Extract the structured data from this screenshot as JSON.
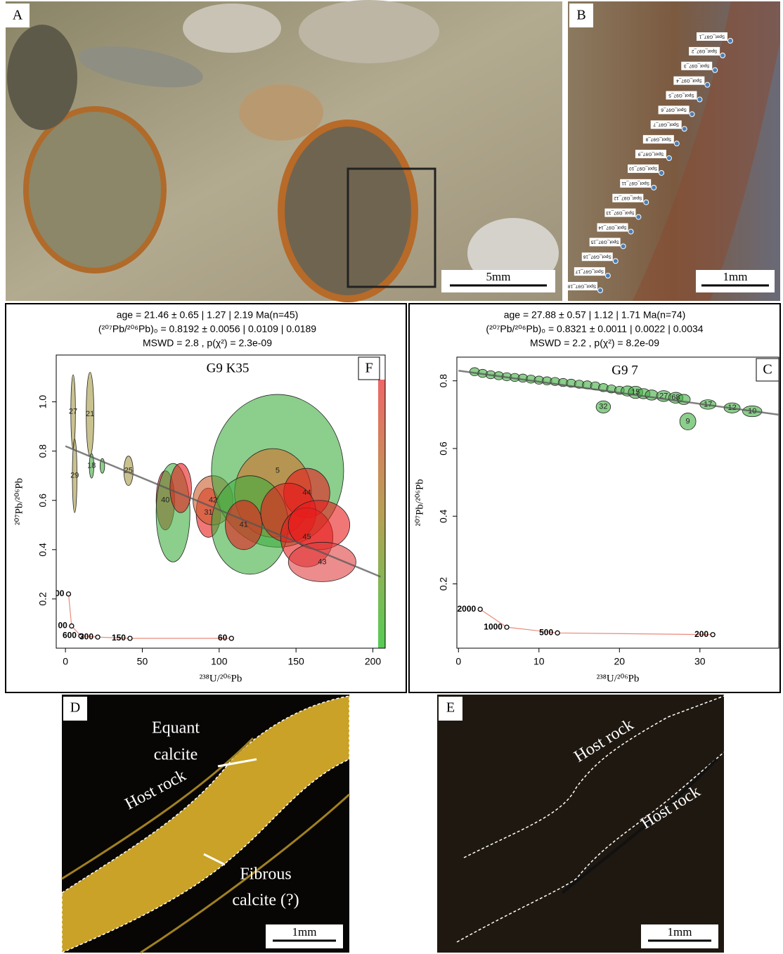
{
  "panels": {
    "labels": [
      "A",
      "B",
      "F",
      "C",
      "D",
      "E"
    ],
    "scale_bars": [
      "5mm",
      "1mm",
      "1mm",
      "1mm"
    ],
    "spots": [
      "Spot_G97_1",
      "Spot_G97_2",
      "Spot_G97_3",
      "Spot_G97_4",
      "Spot_G97_5",
      "Spot_G97_6",
      "Spot_G97_7",
      "Spot_G97_8",
      "Spot_G97_9",
      "Spot_G97_10",
      "Spot_G97_11",
      "Spot_G97_12",
      "Spot_G97_13",
      "Spot_G97_14",
      "Spot_G97_15",
      "Spot_G97_16",
      "Spot_G97_17",
      "Spot_G97_18"
    ],
    "annotations_d": [
      "Equant",
      "calcite",
      "Host rock",
      "Fibrous",
      "calcite (?)"
    ],
    "annotations_e": [
      "Host rock",
      "Host rock"
    ]
  },
  "chart_data": [
    {
      "type": "scatter",
      "title": "G9 K35",
      "subtitle": [
        "age = 21.46 ± 0.65 | 1.27 | 2.19 Ma(n=45)",
        "(²⁰⁷Pb/²⁰⁶Pb)₀ = 0.8192 ± 0.0056 | 0.0109 | 0.0189",
        "MSWD = 2.8 ,  p(χ²) = 2.3e-09"
      ],
      "xlabel": "²³⁸U/²⁰⁶Pb",
      "ylabel": "²⁰⁷Pb/²⁰⁶Pb",
      "xlim": [
        -6,
        208
      ],
      "ylim": [
        0,
        1.19
      ],
      "xticks": [
        0,
        50,
        100,
        150,
        200
      ],
      "yticks": [
        0.2,
        0.4,
        0.6,
        0.8,
        {
          "value": 1,
          "label": "1.0"
        }
      ],
      "series": [
        {
          "x": [
            5,
            16,
            6,
            17,
            24,
            41,
            65,
            70,
            75,
            93,
            96,
            138,
            135,
            120,
            116,
            157,
            145,
            157,
            165,
            167
          ],
          "values": [
            0.96,
            0.95,
            0.7,
            0.74,
            0.74,
            0.72,
            0.6,
            0.55,
            0.65,
            0.55,
            0.6,
            0.72,
            0.63,
            0.5,
            0.5,
            0.63,
            0.55,
            0.45,
            0.5,
            0.35
          ],
          "x_err": [
            1.5,
            2.5,
            1.5,
            1.5,
            1.5,
            3,
            6,
            11,
            7,
            8,
            13,
            43,
            25,
            25,
            12,
            15,
            18,
            17,
            20,
            22
          ],
          "y_err": [
            0.15,
            0.17,
            0.15,
            0.05,
            0.03,
            0.06,
            0.12,
            0.2,
            0.1,
            0.1,
            0.1,
            0.31,
            0.18,
            0.2,
            0.1,
            0.1,
            0.12,
            0.12,
            0.1,
            0.08
          ],
          "colors": [
            "#a59a45",
            "#a59a45",
            "#a59a45",
            "#3fae3f",
            "#3fae3f",
            "#a59a45",
            "#e81c1c",
            "#3fae3f",
            "#e81c1c",
            "#e81c1c",
            "#cc5a2a",
            "#3fae3f",
            "#d0702a",
            "#3fae3f",
            "#e81c1c",
            "#e81c1c",
            "#e81c1c",
            "#e81c1c",
            "#e81c1c",
            "#e04040"
          ],
          "labels": [
            "27",
            "21",
            "29",
            "18",
            null,
            "25",
            "40",
            null,
            null,
            "31",
            "42",
            "5",
            null,
            null,
            "41",
            "44",
            null,
            "45",
            null,
            "43"
          ]
        }
      ],
      "regression": {
        "x": [
          0,
          205
        ],
        "values": [
          0.82,
          0.29
        ]
      },
      "concordia": {
        "labels": [
          "00",
          "00",
          "600",
          "300",
          "150",
          "60"
        ],
        "x": [
          2,
          4,
          10,
          21,
          42,
          108
        ],
        "values": [
          0.22,
          0.09,
          0.05,
          0.045,
          0.04,
          0.04
        ]
      }
    },
    {
      "type": "scatter",
      "title": "G9 7",
      "subtitle": [
        "age = 27.88 ± 0.57 | 1.12 | 1.71 Ma(n=74)",
        "(²⁰⁷Pb/²⁰⁶Pb)₀ = 0.8321 ± 0.0011 | 0.0022 | 0.0034",
        "MSWD = 2.2 ,  p(χ²) = 8.2e-09"
      ],
      "xlabel": "²³⁸U/²⁰⁶Pb",
      "ylabel": "²⁰⁷Pb/²⁰⁶Pb",
      "xlim": [
        -0.2,
        39.8
      ],
      "ylim": [
        0.01,
        0.87
      ],
      "xticks": [
        0,
        10,
        20,
        30
      ],
      "yticks": [
        0.2,
        0.4,
        0.6,
        0.8
      ],
      "series": [
        {
          "color": "#3fae3f",
          "x": [
            2,
            3,
            4,
            5,
            6,
            7,
            8,
            9,
            10,
            11,
            12,
            13,
            14,
            15,
            16,
            17,
            18,
            19,
            20,
            21,
            22,
            23,
            24,
            25.5,
            27,
            28,
            31,
            34,
            36.5,
            18,
            28.5
          ],
          "values": [
            0.827,
            0.822,
            0.818,
            0.815,
            0.812,
            0.81,
            0.808,
            0.805,
            0.802,
            0.8,
            0.798,
            0.795,
            0.793,
            0.79,
            0.788,
            0.785,
            0.78,
            0.776,
            0.772,
            0.77,
            0.766,
            0.762,
            0.758,
            0.755,
            0.75,
            0.745,
            0.73,
            0.72,
            0.71,
            0.723,
            0.68
          ],
          "x_err": [
            0.6,
            0.6,
            0.6,
            0.6,
            0.6,
            0.6,
            0.6,
            0.6,
            0.6,
            0.6,
            0.6,
            0.6,
            0.6,
            0.6,
            0.6,
            0.6,
            0.6,
            0.6,
            0.6,
            0.8,
            0.9,
            0.8,
            0.8,
            0.9,
            0.9,
            0.8,
            1,
            1,
            1.2,
            0.9,
            1
          ],
          "y_err": [
            0.012,
            0.012,
            0.012,
            0.012,
            0.012,
            0.012,
            0.012,
            0.012,
            0.012,
            0.012,
            0.012,
            0.012,
            0.012,
            0.012,
            0.012,
            0.012,
            0.012,
            0.012,
            0.012,
            0.015,
            0.018,
            0.015,
            0.015,
            0.016,
            0.016,
            0.015,
            0.014,
            0.015,
            0.016,
            0.018,
            0.025
          ],
          "labels": [
            null,
            null,
            null,
            null,
            null,
            null,
            null,
            null,
            null,
            null,
            null,
            null,
            null,
            null,
            null,
            null,
            null,
            null,
            null,
            null,
            "15",
            null,
            null,
            "27",
            "68",
            null,
            "17",
            "12",
            "10",
            "32",
            "9"
          ]
        }
      ],
      "regression": {
        "x": [
          0,
          39.8
        ],
        "values": [
          0.83,
          0.7
        ]
      },
      "concordia": {
        "labels": [
          "2000",
          "1000",
          "500",
          "200"
        ],
        "x": [
          2.7,
          6,
          12.3,
          31.6
        ],
        "values": [
          0.125,
          0.072,
          0.055,
          0.05
        ]
      }
    }
  ]
}
